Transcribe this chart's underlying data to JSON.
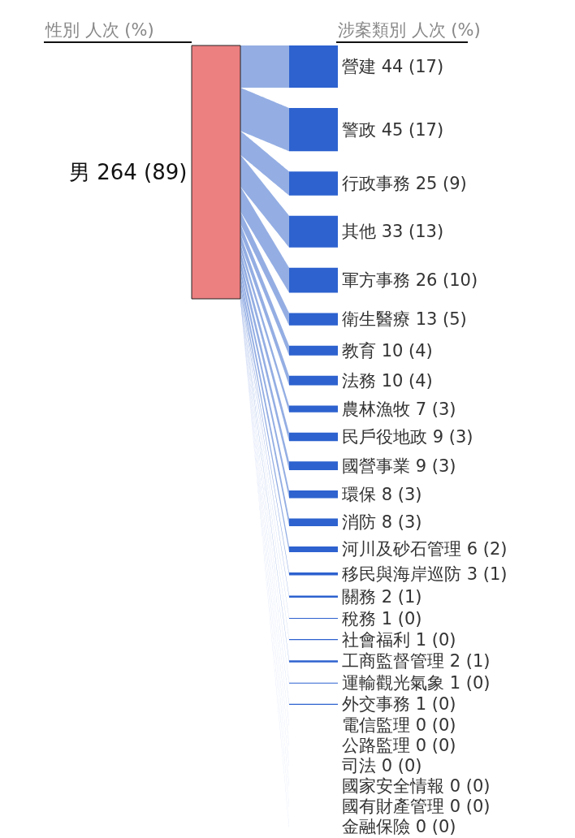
{
  "chart_data": {
    "type": "other",
    "annotations": [
      "性別 人次 (%)",
      "涉案類別 人次 (%)",
      "男 264 (89)"
    ],
    "categories": [
      "營建",
      "警政",
      "行政事務",
      "其他",
      "軍方事務",
      "衛生醫療",
      "教育",
      "法務",
      "農林漁牧",
      "民戶役地政",
      "國營事業",
      "環保",
      "消防",
      "河川及砂石管理",
      "移民與海岸巡防",
      "關務",
      "稅務",
      "社會福利",
      "工商監督管理",
      "運輸觀光氣象",
      "外交事務",
      "電信監理",
      "公路監理",
      "司法",
      "國家安全情報",
      "國有財產管理",
      "金融保險"
    ],
    "values": [
      44,
      45,
      25,
      33,
      26,
      13,
      10,
      10,
      7,
      9,
      9,
      8,
      8,
      6,
      3,
      2,
      1,
      1,
      2,
      1,
      1,
      0,
      0,
      0,
      0,
      0,
      0
    ],
    "value_labels": [
      "44 (17)",
      "45 (17)",
      "25 (9)",
      "33 (13)",
      "26 (10)",
      "13 (5)",
      "10 (4)",
      "10 (4)",
      "7 (3)",
      "9 (3)",
      "9 (3)",
      "8 (3)",
      "8 (3)",
      "6 (2)",
      "3 (1)",
      "2 (1)",
      "1 (0)",
      "1 (0)",
      "2 (1)",
      "1 (0)",
      "1 (0)",
      "0 (0)",
      "0 (0)",
      "0 (0)",
      "0 (0)",
      "0 (0)",
      "0 (0)"
    ],
    "colors": [
      "#2d62cf",
      "#2d62cf",
      "#2d62cf",
      "#2d62cf",
      "#2d62cf",
      "#2d62cf",
      "#2d62cf",
      "#2d62cf",
      "#2d62cf",
      "#2d62cf",
      "#2d62cf",
      "#2d62cf",
      "#2d62cf",
      "#2d62cf",
      "#2d62cf",
      "#2d62cf",
      "#2d62cf",
      "#2d62cf",
      "#2d62cf",
      "#2d62cf",
      "#2d62cf",
      "#2d62cf",
      "#2d62cf",
      "#2d62cf",
      "#2d62cf",
      "#2d62cf",
      "#2d62cf"
    ],
    "color": "#ec7f80"
  }
}
